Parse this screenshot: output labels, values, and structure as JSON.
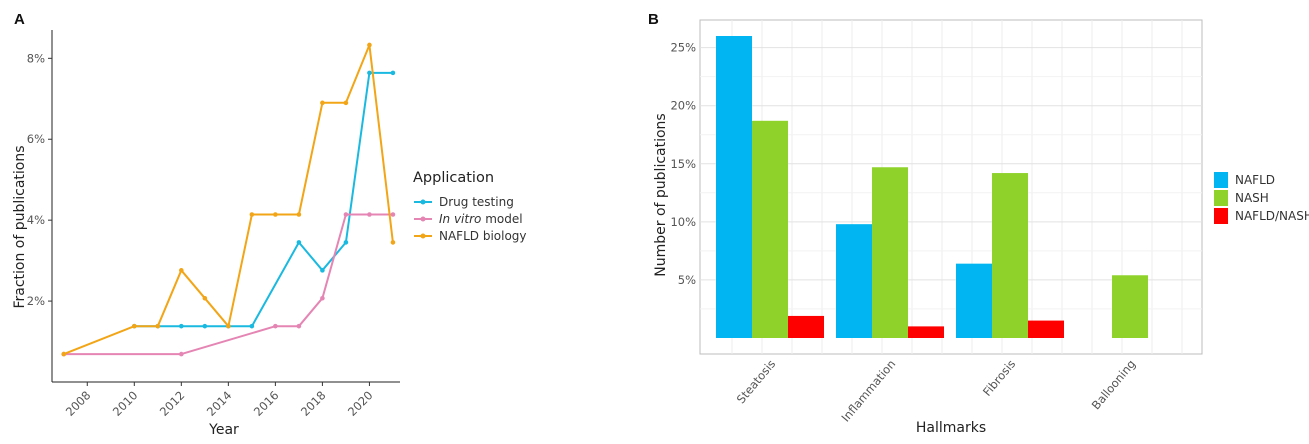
{
  "panels": {
    "a": "A",
    "b": "B"
  },
  "chart_data": [
    {
      "type": "line",
      "xlabel": "Year",
      "ylabel": "Fraction of publications",
      "x_ticks": [
        "2008",
        "2010",
        "2012",
        "2014",
        "2016",
        "2018",
        "2020"
      ],
      "y_ticks": [
        "2%",
        "4%",
        "6%",
        "8%"
      ],
      "xlim": [
        2006.5,
        2021.3
      ],
      "ylim": [
        0.0,
        8.7
      ],
      "legend": {
        "title": "Application",
        "placement": "right"
      },
      "series": [
        {
          "name": "Drug testing",
          "color": "#1ab9e0",
          "points": [
            [
              2010,
              1.38
            ],
            [
              2011,
              1.38
            ],
            [
              2012,
              1.38
            ],
            [
              2013,
              1.38
            ],
            [
              2014,
              1.38
            ],
            [
              2015,
              1.38
            ],
            [
              2017,
              3.45
            ],
            [
              2018,
              2.76
            ],
            [
              2019,
              3.45
            ],
            [
              2020,
              7.64
            ],
            [
              2021,
              7.64
            ]
          ]
        },
        {
          "name": "In vitro model",
          "name_parts": {
            "italic": "In vitro",
            "rest": " model"
          },
          "color": "#e585b4",
          "points": [
            [
              2007,
              0.69
            ],
            [
              2012,
              0.69
            ],
            [
              2016,
              1.38
            ],
            [
              2017,
              1.38
            ],
            [
              2018,
              2.07
            ],
            [
              2019,
              4.14
            ],
            [
              2020,
              4.14
            ],
            [
              2021,
              4.14
            ]
          ]
        },
        {
          "name": "NAFLD biology",
          "name_parts": {
            "italic": "",
            "rest": "NAFLD biology"
          },
          "color": "#f2a516",
          "points": [
            [
              2007,
              0.69
            ],
            [
              2010,
              1.38
            ],
            [
              2011,
              1.38
            ],
            [
              2012,
              2.76
            ],
            [
              2013,
              2.07
            ],
            [
              2014,
              1.38
            ],
            [
              2015,
              4.14
            ],
            [
              2016,
              4.14
            ],
            [
              2017,
              4.14
            ],
            [
              2018,
              6.9
            ],
            [
              2019,
              6.9
            ],
            [
              2020,
              8.33
            ],
            [
              2021,
              3.45
            ]
          ]
        }
      ]
    },
    {
      "type": "bar",
      "xlabel": "Hallmarks",
      "ylabel": "Number of publications",
      "categories": [
        "Steatosis",
        "Inflammation",
        "Fibrosis",
        "Ballooning"
      ],
      "y_ticks": [
        "5%",
        "10%",
        "15%",
        "20%",
        "25%"
      ],
      "ylim": [
        0,
        27
      ],
      "legend": {
        "title": "",
        "placement": "right"
      },
      "series": [
        {
          "name": "NAFLD",
          "color": "#00b5f1",
          "values": [
            26.0,
            9.8,
            6.4,
            0
          ]
        },
        {
          "name": "NASH",
          "color": "#8ed22a",
          "values": [
            18.7,
            14.7,
            14.2,
            5.4
          ]
        },
        {
          "name": "NAFLD/NASH",
          "color": "#ff0000",
          "values": [
            1.9,
            1.0,
            1.5,
            0
          ]
        }
      ]
    }
  ]
}
